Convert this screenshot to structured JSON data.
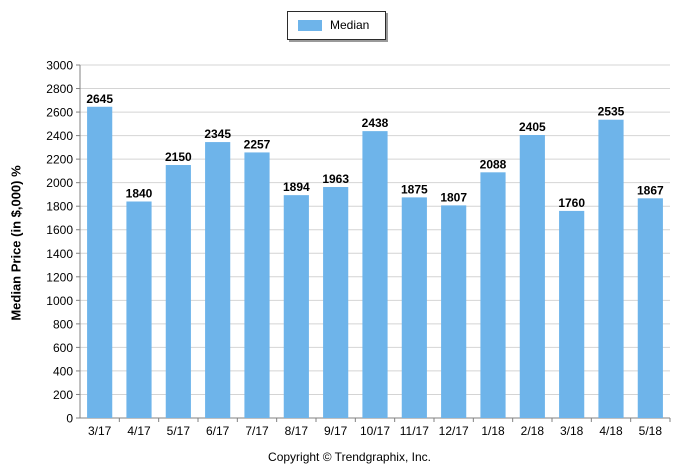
{
  "legend": {
    "label": "Median"
  },
  "footer": {
    "copyright": "Copyright © Trendgraphix, Inc."
  },
  "colors": {
    "bar": "#6eb4ea",
    "grid": "#d4d4d4",
    "axis": "#808080"
  },
  "chart_data": {
    "type": "bar",
    "title": "",
    "xlabel": "",
    "ylabel": "Median Price (in $,000) %",
    "categories": [
      "3/17",
      "4/17",
      "5/17",
      "6/17",
      "7/17",
      "8/17",
      "9/17",
      "10/17",
      "11/17",
      "12/17",
      "1/18",
      "2/18",
      "3/18",
      "4/18",
      "5/18"
    ],
    "series": [
      {
        "name": "Median",
        "values": [
          2645,
          1840,
          2150,
          2345,
          2257,
          1894,
          1963,
          2438,
          1875,
          1807,
          2088,
          2405,
          1760,
          2535,
          1867
        ]
      }
    ],
    "ylim": [
      0,
      3000
    ],
    "yticks": [
      0,
      200,
      400,
      600,
      800,
      1000,
      1200,
      1400,
      1600,
      1800,
      2000,
      2200,
      2400,
      2600,
      2800,
      3000
    ],
    "grid": true,
    "legend_position": "top-center"
  }
}
